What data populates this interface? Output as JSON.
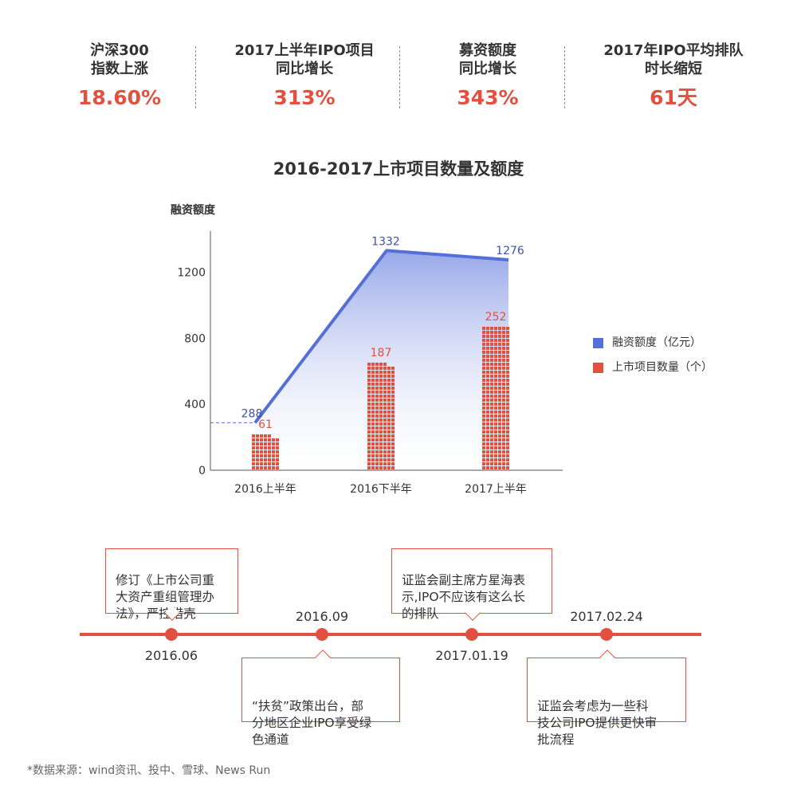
{
  "kpis": [
    {
      "label": "沪深300\n指数上涨",
      "value": "18.60%"
    },
    {
      "label": "2017上半年IPO项目\n同比增长",
      "value": "313%"
    },
    {
      "label": "募资额度\n同比增长",
      "value": "343%"
    },
    {
      "label": "2017年IPO平均排队\n时长缩短",
      "value": "61天"
    }
  ],
  "chart_title": "2016-2017上市项目数量及额度",
  "chart_data": {
    "type": "bar",
    "categories": [
      "2016上半年",
      "2016下半年",
      "2017上半年"
    ],
    "ylabel": "融资额度",
    "ylim": [
      0,
      1450
    ],
    "yticks": [
      0,
      400,
      800,
      1200
    ],
    "series": [
      {
        "name": "融资额度（亿元）",
        "type": "area",
        "color": "#5470d6",
        "values": [
          288,
          1332,
          1276
        ]
      },
      {
        "name": "上市项目数量（个）",
        "type": "bar",
        "color": "#e2513f",
        "values": [
          61,
          187,
          252
        ]
      }
    ],
    "legend_position": "right",
    "grid": false
  },
  "timeline": {
    "events": [
      {
        "date": "2016.06",
        "text": "修订《上市公司重\n大资产重组管理办\n法》，严控借壳"
      },
      {
        "date": "2016.09",
        "text": "“扶贫”政策出台，部\n分地区企业IPO享受绿\n色通道"
      },
      {
        "date": "2017.01.19",
        "text": "证监会副主席方星海表\n示,IPO不应该有这么长\n的排队"
      },
      {
        "date": "2017.02.24",
        "text": "证监会考虑为一些科\n技公司IPO提供更快审\n批流程"
      }
    ]
  },
  "source": "*数据来源：wind资讯、投中、雪球、News Run"
}
